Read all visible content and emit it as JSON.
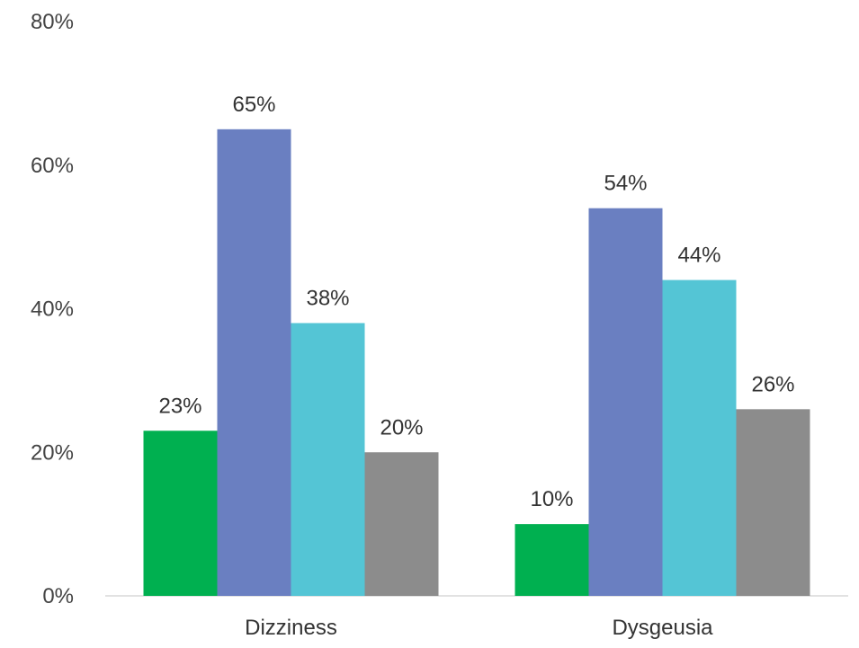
{
  "chart_data": {
    "type": "bar",
    "categories": [
      "Dizziness",
      "Dysgeusia"
    ],
    "series": [
      {
        "values": [
          23,
          10
        ],
        "color": "#00B050"
      },
      {
        "values": [
          65,
          54
        ],
        "color": "#6A7FC1"
      },
      {
        "values": [
          38,
          44
        ],
        "color": "#54C5D5"
      },
      {
        "values": [
          20,
          26
        ],
        "color": "#8C8C8C"
      }
    ],
    "data_labels": [
      [
        "23%",
        "10%"
      ],
      [
        "65%",
        "54%"
      ],
      [
        "38%",
        "44%"
      ],
      [
        "20%",
        "26%"
      ]
    ],
    "yticks": [
      "0%",
      "20%",
      "40%",
      "60%",
      "80%"
    ],
    "ylim": [
      0,
      80
    ],
    "grid": false,
    "legend": "none",
    "title": "",
    "xlabel": "",
    "ylabel": ""
  }
}
